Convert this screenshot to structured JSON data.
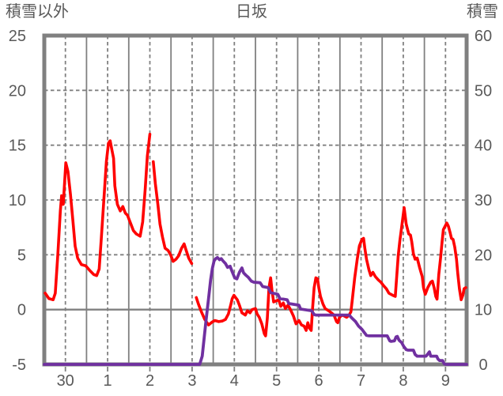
{
  "title": "日坂",
  "colors": {
    "grid": "#808080",
    "text": "#595959",
    "background": "#FFFFFF",
    "temperature_line": "#FF0000",
    "snow_line": "#7030A0"
  },
  "chart_data": {
    "type": "line",
    "title": "日坂",
    "left_axis": {
      "label": "積雪以外",
      "min": -5,
      "max": 25,
      "ticks": [
        25,
        20,
        15,
        10,
        5,
        0,
        -5
      ],
      "dashed_gridlines": [
        20,
        15,
        10,
        5
      ],
      "solid_gridlines": [
        0
      ]
    },
    "right_axis": {
      "label": "積雪",
      "min": 0,
      "max": 60,
      "ticks": [
        60,
        50,
        40,
        30,
        20,
        10,
        0
      ]
    },
    "x_axis": {
      "tick_labels": [
        "30",
        "1",
        "2",
        "3",
        "4",
        "5",
        "6",
        "7",
        "8",
        "9"
      ],
      "num_days": 10,
      "grid": "solid lines at day boundaries, dashed lines at midday under each label"
    },
    "series": [
      {
        "name": "積雪以外",
        "axis": "left",
        "color": "#FF0000",
        "points": [
          [
            0.02,
            1.5
          ],
          [
            0.11,
            1.0
          ],
          [
            0.21,
            0.9
          ],
          [
            0.26,
            1.5
          ],
          [
            0.32,
            5.0
          ],
          [
            0.38,
            9.0
          ],
          [
            0.41,
            10.4
          ],
          [
            0.45,
            9.6
          ],
          [
            0.51,
            13.4
          ],
          [
            0.56,
            12.6
          ],
          [
            0.62,
            10.5
          ],
          [
            0.68,
            8.0
          ],
          [
            0.73,
            5.8
          ],
          [
            0.79,
            4.7
          ],
          [
            0.88,
            4.1
          ],
          [
            0.98,
            4.0
          ],
          [
            1.07,
            3.6
          ],
          [
            1.17,
            3.2
          ],
          [
            1.24,
            3.1
          ],
          [
            1.3,
            3.7
          ],
          [
            1.35,
            6.5
          ],
          [
            1.41,
            10.0
          ],
          [
            1.47,
            13.5
          ],
          [
            1.52,
            15.2
          ],
          [
            1.56,
            15.4
          ],
          [
            1.6,
            14.6
          ],
          [
            1.64,
            13.8
          ],
          [
            1.67,
            11.3
          ],
          [
            1.73,
            9.6
          ],
          [
            1.8,
            9.0
          ],
          [
            1.86,
            9.4
          ],
          [
            1.92,
            8.8
          ],
          [
            1.97,
            8.6
          ],
          [
            2.03,
            8.0
          ],
          [
            2.11,
            7.2
          ],
          [
            2.18,
            6.9
          ],
          [
            2.27,
            6.7
          ],
          [
            2.33,
            8.0
          ],
          [
            2.39,
            11.0
          ],
          [
            2.44,
            14.0
          ],
          [
            2.5,
            16.0
          ],
          null,
          [
            2.58,
            13.5
          ],
          [
            2.63,
            11.5
          ],
          [
            2.69,
            9.6
          ],
          [
            2.74,
            7.8
          ],
          [
            2.8,
            6.6
          ],
          [
            2.86,
            5.6
          ],
          [
            2.93,
            5.4
          ],
          [
            2.99,
            5.0
          ],
          [
            3.05,
            4.4
          ],
          [
            3.12,
            4.6
          ],
          [
            3.18,
            4.9
          ],
          [
            3.25,
            5.6
          ],
          [
            3.31,
            6.0
          ],
          [
            3.36,
            5.4
          ],
          [
            3.42,
            4.7
          ],
          [
            3.49,
            4.2
          ],
          null,
          [
            3.6,
            1.1
          ],
          [
            3.65,
            0.5
          ],
          [
            3.72,
            -0.2
          ],
          [
            3.8,
            -0.9
          ],
          [
            3.89,
            -1.4
          ],
          [
            3.97,
            -1.15
          ],
          [
            4.04,
            -1.0
          ],
          [
            4.13,
            -1.1
          ],
          [
            4.21,
            -1.05
          ],
          [
            4.29,
            -0.9
          ],
          [
            4.36,
            -0.4
          ],
          [
            4.42,
            0.5
          ],
          [
            4.45,
            1.0
          ],
          [
            4.49,
            1.3
          ],
          [
            4.53,
            1.1
          ],
          [
            4.57,
            0.9
          ],
          [
            4.62,
            0.4
          ],
          [
            4.68,
            -0.3
          ],
          [
            4.76,
            -0.5
          ],
          [
            4.81,
            -0.1
          ],
          [
            4.87,
            -0.3
          ],
          [
            4.92,
            0.0
          ],
          [
            5.0,
            0.1
          ],
          [
            5.04,
            -0.4
          ],
          [
            5.09,
            -0.7
          ],
          [
            5.15,
            -1.3
          ],
          [
            5.21,
            -2.2
          ],
          [
            5.24,
            -2.4
          ],
          [
            5.28,
            -0.8
          ],
          [
            5.32,
            2.0
          ],
          [
            5.36,
            2.9
          ],
          [
            5.39,
            1.8
          ],
          [
            5.43,
            0.7
          ],
          [
            5.49,
            0.8
          ],
          [
            5.55,
            0.9
          ],
          [
            5.6,
            0.3
          ],
          [
            5.66,
            0.6
          ],
          [
            5.71,
            0.1
          ],
          [
            5.77,
            0.4
          ],
          [
            5.83,
            0.0
          ],
          [
            5.9,
            -0.6
          ],
          [
            5.96,
            -1.3
          ],
          [
            6.03,
            -1.0
          ],
          [
            6.09,
            -1.4
          ],
          [
            6.15,
            -1.5
          ],
          [
            6.2,
            -1.9
          ],
          [
            6.24,
            -1.2
          ],
          [
            6.28,
            -1.7
          ],
          [
            6.32,
            -1.9
          ],
          [
            6.35,
            0.0
          ],
          [
            6.39,
            2.0
          ],
          [
            6.43,
            2.9
          ],
          [
            6.47,
            2.8
          ],
          [
            6.5,
            2.0
          ],
          [
            6.54,
            1.2
          ],
          [
            6.6,
            0.5
          ],
          [
            6.65,
            0.1
          ],
          [
            6.73,
            -0.1
          ],
          [
            6.8,
            -0.3
          ],
          [
            6.86,
            -0.5
          ],
          [
            6.92,
            -1.1
          ],
          [
            6.95,
            -1.2
          ],
          [
            6.99,
            -0.7
          ],
          [
            7.05,
            -0.5
          ],
          [
            7.11,
            -0.6
          ],
          [
            7.16,
            -0.7
          ],
          [
            7.22,
            -0.5
          ],
          [
            7.26,
            -0.2
          ],
          [
            7.29,
            0.8
          ],
          [
            7.35,
            2.9
          ],
          [
            7.41,
            4.6
          ],
          [
            7.46,
            5.8
          ],
          [
            7.52,
            6.4
          ],
          [
            7.56,
            6.5
          ],
          [
            7.59,
            5.6
          ],
          [
            7.63,
            4.6
          ],
          [
            7.69,
            3.6
          ],
          [
            7.73,
            3.1
          ],
          [
            7.78,
            3.4
          ],
          [
            7.84,
            3.0
          ],
          [
            7.91,
            2.7
          ],
          [
            7.97,
            2.5
          ],
          [
            8.03,
            2.2
          ],
          [
            8.1,
            1.9
          ],
          [
            8.16,
            1.5
          ],
          [
            8.25,
            1.3
          ],
          [
            8.31,
            1.2
          ],
          [
            8.38,
            4.9
          ],
          [
            8.42,
            6.3
          ],
          [
            8.46,
            7.5
          ],
          [
            8.52,
            9.3
          ],
          [
            8.57,
            7.8
          ],
          [
            8.63,
            6.9
          ],
          [
            8.67,
            6.8
          ],
          [
            8.7,
            6.2
          ],
          [
            8.74,
            5.1
          ],
          [
            8.78,
            4.6
          ],
          [
            8.83,
            4.7
          ],
          [
            8.89,
            3.8
          ],
          [
            8.95,
            3.0
          ],
          [
            8.98,
            2.0
          ],
          [
            9.02,
            1.4
          ],
          [
            9.08,
            2.0
          ],
          [
            9.15,
            2.5
          ],
          [
            9.19,
            2.6
          ],
          [
            9.23,
            2.0
          ],
          [
            9.27,
            1.2
          ],
          [
            9.3,
            0.95
          ],
          [
            9.34,
            3.2
          ],
          [
            9.38,
            4.6
          ],
          [
            9.42,
            6.2
          ],
          [
            9.45,
            7.3
          ],
          [
            9.53,
            7.9
          ],
          [
            9.57,
            7.6
          ],
          [
            9.61,
            7.0
          ],
          [
            9.64,
            6.5
          ],
          [
            9.68,
            6.4
          ],
          [
            9.72,
            5.7
          ],
          [
            9.76,
            4.6
          ],
          [
            9.79,
            3.3
          ],
          [
            9.83,
            1.9
          ],
          [
            9.87,
            0.9
          ],
          [
            9.91,
            1.3
          ],
          [
            9.94,
            1.9
          ],
          [
            9.98,
            2.0
          ]
        ]
      },
      {
        "name": "積雪",
        "axis": "right",
        "color": "#7030A0",
        "points": [
          [
            0,
            0
          ],
          [
            1,
            0
          ],
          [
            2,
            0
          ],
          [
            3,
            0
          ],
          [
            3.68,
            0
          ],
          [
            3.74,
            1.5
          ],
          [
            3.78,
            4.5
          ],
          [
            3.83,
            8
          ],
          [
            3.89,
            12
          ],
          [
            3.94,
            15.5
          ],
          [
            3.98,
            17.5
          ],
          [
            4.02,
            18.9
          ],
          [
            4.06,
            19.3
          ],
          [
            4.1,
            19.5
          ],
          [
            4.15,
            19.1
          ],
          [
            4.19,
            19.3
          ],
          [
            4.23,
            18.9
          ],
          [
            4.29,
            18.4
          ],
          [
            4.34,
            17.7
          ],
          [
            4.4,
            17.9
          ],
          [
            4.45,
            16.9
          ],
          [
            4.51,
            15.8
          ],
          [
            4.56,
            15.6
          ],
          [
            4.62,
            16.8
          ],
          [
            4.68,
            17.6
          ],
          [
            4.72,
            16.7
          ],
          [
            4.77,
            16.3
          ],
          [
            4.83,
            15.9
          ],
          [
            4.9,
            15.2
          ],
          [
            4.96,
            15.0
          ],
          [
            5.11,
            14.9
          ],
          [
            5.17,
            14.2
          ],
          [
            5.3,
            14.0
          ],
          [
            5.36,
            13.1
          ],
          [
            5.53,
            12.8
          ],
          [
            5.58,
            12.0
          ],
          [
            5.75,
            11.8
          ],
          [
            5.79,
            11.1
          ],
          [
            6.03,
            10.8
          ],
          [
            6.07,
            10.1
          ],
          [
            6.33,
            9.8
          ],
          [
            6.39,
            9.1
          ],
          [
            6.43,
            9.0
          ],
          [
            7.22,
            9.0
          ],
          [
            7.29,
            8.4
          ],
          [
            7.37,
            7.8
          ],
          [
            7.44,
            7.0
          ],
          [
            7.52,
            6.4
          ],
          [
            7.57,
            5.9
          ],
          [
            7.63,
            5.3
          ],
          [
            7.69,
            5.2
          ],
          [
            8.12,
            5.2
          ],
          [
            8.18,
            4.3
          ],
          [
            8.21,
            4.2
          ],
          [
            8.29,
            4.3
          ],
          [
            8.33,
            5.0
          ],
          [
            8.36,
            5.1
          ],
          [
            8.4,
            4.4
          ],
          [
            8.46,
            4.0
          ],
          [
            8.51,
            3.3
          ],
          [
            8.57,
            2.7
          ],
          [
            8.61,
            2.6
          ],
          [
            8.74,
            2.6
          ],
          [
            8.78,
            1.8
          ],
          [
            8.83,
            1.5
          ],
          [
            9.04,
            1.5
          ],
          [
            9.08,
            1.9
          ],
          [
            9.12,
            2.3
          ],
          [
            9.15,
            1.5
          ],
          [
            9.29,
            1.5
          ],
          [
            9.32,
            1.0
          ],
          [
            9.36,
            0.7
          ],
          [
            9.43,
            0.7
          ],
          [
            9.47,
            0.1
          ],
          [
            9.51,
            0
          ],
          [
            10,
            0
          ]
        ]
      }
    ]
  }
}
